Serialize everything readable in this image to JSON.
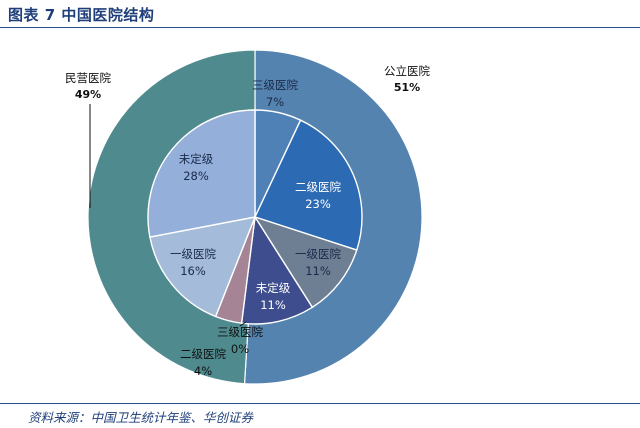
{
  "figure": {
    "title": "图表 7 中国医院结构",
    "source": "资料来源：中国卫生统计年鉴、华创证券"
  },
  "chart_data": [
    {
      "type": "pie",
      "ring": "outer",
      "categories": [
        "公立医院",
        "民营医院"
      ],
      "values": [
        51,
        49
      ],
      "labels": [
        "51%",
        "49%"
      ],
      "colors": [
        "#5583b0",
        "#4f8a8e"
      ]
    },
    {
      "type": "pie",
      "ring": "inner",
      "categories": [
        "三级医院",
        "二级医院",
        "一级医院",
        "未定级",
        "三级医院",
        "二级医院",
        "一级医院",
        "未定级"
      ],
      "values": [
        7,
        23,
        11,
        11,
        0,
        4,
        16,
        28
      ],
      "labels": [
        "7%",
        "23%",
        "11%",
        "11%",
        "0%",
        "4%",
        "16%",
        "28%"
      ],
      "colors": [
        "#4f80b6",
        "#2c6ab3",
        "#6f7f93",
        "#3e4d8e",
        "#b5c8e2",
        "#a58595",
        "#a4bcd9",
        "#94afd9"
      ]
    }
  ]
}
